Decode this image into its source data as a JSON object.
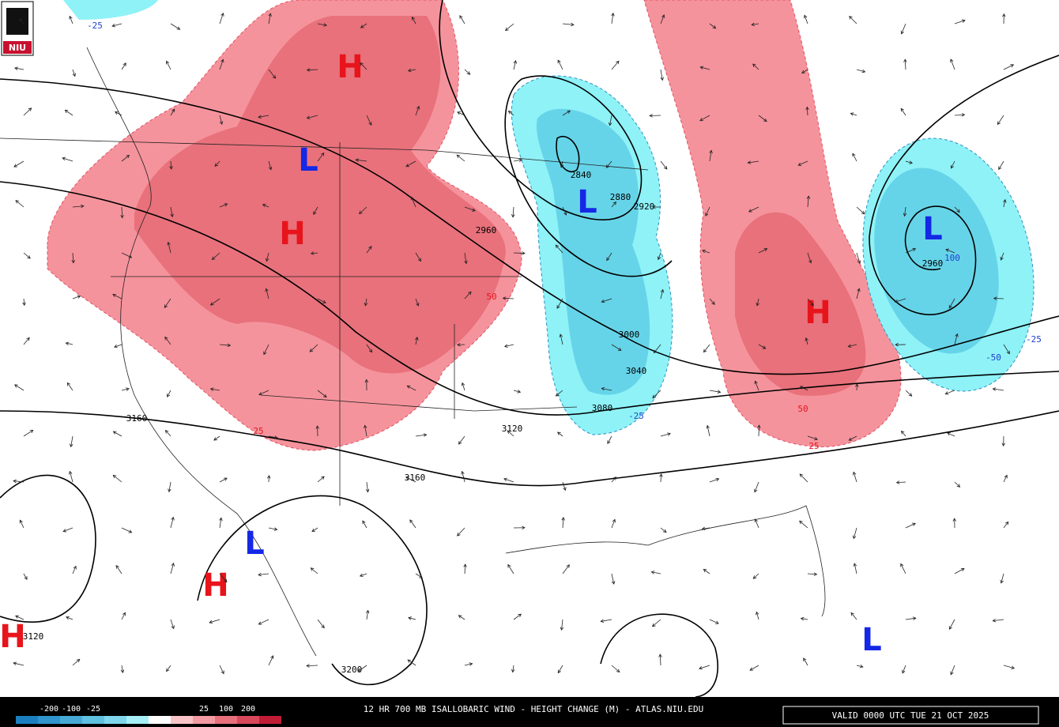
{
  "logo": "NIU",
  "centers": [
    "H",
    "L",
    "H",
    "L",
    "H",
    "L",
    "L",
    "H",
    "H",
    "L"
  ],
  "contour_labels": [
    "2840",
    "2880",
    "2920",
    "2960",
    "3000",
    "3040",
    "3080",
    "3120",
    "3160",
    "3160",
    "3120",
    "3200",
    "2960"
  ],
  "change_labels": [
    "50",
    "25",
    "-25",
    "-25",
    "50",
    "25",
    "100",
    "-50",
    "-25"
  ],
  "legend": {
    "labels": [
      "-200",
      "-100",
      "-25",
      "25",
      "100",
      "200"
    ],
    "colors": [
      "#1b7fbf",
      "#2f95cc",
      "#47aad6",
      "#5fc0e0",
      "#7fd6ea",
      "#a6eff6",
      "#ffffff",
      "#f9c4c8",
      "#f39aa3",
      "#e8707c",
      "#d8485a",
      "#c01c36"
    ]
  },
  "footer": {
    "title": "12 HR 700 MB ISALLOBARIC WIND - HEIGHT CHANGE (M) - ATLAS.NIU.EDU",
    "valid": "VALID 0000 UTC TUE 21 OCT 2025"
  }
}
